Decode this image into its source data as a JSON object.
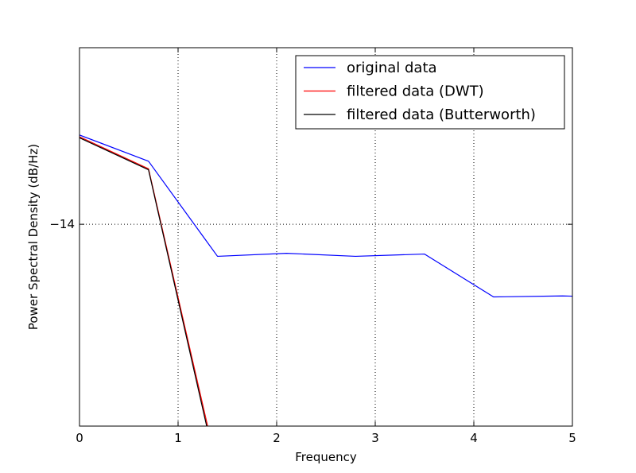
{
  "chart_data": {
    "type": "line",
    "title": "",
    "xlabel": "Frequency",
    "ylabel": "Power Spectral Density (dB/Hz)",
    "xlim": [
      0,
      5
    ],
    "ylim": [
      -22,
      -7
    ],
    "xticks": [
      0,
      1,
      2,
      3,
      4,
      5
    ],
    "xtick_labels": [
      "0",
      "1",
      "2",
      "3",
      "4",
      "5"
    ],
    "yticks": [
      -14
    ],
    "ytick_labels": [
      "−14"
    ],
    "grid": true,
    "legend_position": "top-right",
    "series": [
      {
        "name": "original data",
        "color": "#0000ff",
        "x": [
          0,
          0.7,
          1.4,
          2.1,
          2.8,
          3.5,
          4.2,
          4.9,
          5.0
        ],
        "y": [
          -10.46,
          -11.5,
          -15.27,
          -15.15,
          -15.27,
          -15.18,
          -16.88,
          -16.84,
          -16.85
        ]
      },
      {
        "name": "filtered data (DWT)",
        "color": "#ff0000",
        "x": [
          0,
          0.7,
          1.3
        ],
        "y": [
          -10.53,
          -11.8,
          -22.0
        ]
      },
      {
        "name": "filtered data (Butterworth)",
        "color": "#000000",
        "x": [
          0,
          0.7,
          1.29
        ],
        "y": [
          -10.57,
          -11.84,
          -22.0
        ]
      }
    ]
  }
}
